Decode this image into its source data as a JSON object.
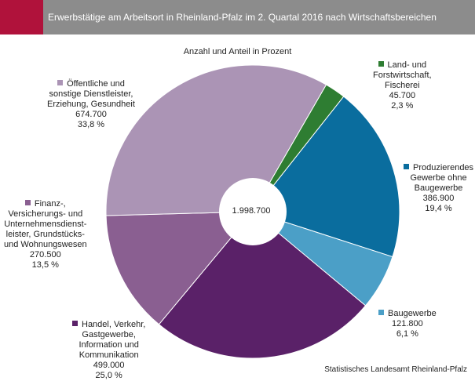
{
  "header": {
    "title": "Erwerbstätige am Arbeitsort in Rheinland-Pfalz im 2. Quartal 2016 nach Wirtschaftsbereichen",
    "accent_color": "#b0123b",
    "bar_color": "#8c8c8c"
  },
  "chart_data": {
    "type": "pie",
    "subtitle": "Anzahl und Anteil in Prozent",
    "total_label": "1.998.700",
    "source": "Statistisches Landesamt Rheinland-Pfalz",
    "slices": [
      {
        "name": "Land- und Forstwirtschaft, Fischerei",
        "value": 45700,
        "percent": 2.3,
        "color": "#2e7d32",
        "label_lines": [
          "Land- und",
          "Forstwirtschaft,",
          "Fischerei"
        ],
        "value_label": "45.700",
        "percent_label": "2,3 %"
      },
      {
        "name": "Produzierendes Gewerbe ohne Baugewerbe",
        "value": 386900,
        "percent": 19.4,
        "color": "#0a6d9e",
        "label_lines": [
          "Produzierendes",
          "Gewerbe ohne",
          "Baugewerbe"
        ],
        "value_label": "386.900",
        "percent_label": "19,4 %"
      },
      {
        "name": "Baugewerbe",
        "value": 121800,
        "percent": 6.1,
        "color": "#4b9fc7",
        "label_lines": [
          "Baugewerbe"
        ],
        "value_label": "121.800",
        "percent_label": "6,1 %"
      },
      {
        "name": "Handel, Verkehr, Gastgewerbe, Information und Kommunikation",
        "value": 499000,
        "percent": 25.0,
        "color": "#5a2168",
        "label_lines": [
          "Handel, Verkehr,",
          "Gastgewerbe,",
          "Information und",
          "Kommunikation"
        ],
        "value_label": "499.000",
        "percent_label": "25,0 %"
      },
      {
        "name": "Finanz-, Versicherungs- und Unternehmensdienstleister, Grundstücks- und Wohnungswesen",
        "value": 270500,
        "percent": 13.5,
        "color": "#8a5f91",
        "label_lines": [
          "Finanz-,",
          "Versicherungs- und",
          "Unternehmensdienst-",
          "leister, Grundstücks-",
          "und Wohnungswesen"
        ],
        "value_label": "270.500",
        "percent_label": "13,5 %"
      },
      {
        "name": "Öffentliche und sonstige Dienstleister, Erziehung, Gesundheit",
        "value": 674700,
        "percent": 33.8,
        "color": "#ab94b5",
        "label_lines": [
          "Öffentliche und",
          "sonstige Dienstleister,",
          "Erziehung, Gesundheit"
        ],
        "value_label": "674.700",
        "percent_label": "33,8 %"
      }
    ]
  }
}
